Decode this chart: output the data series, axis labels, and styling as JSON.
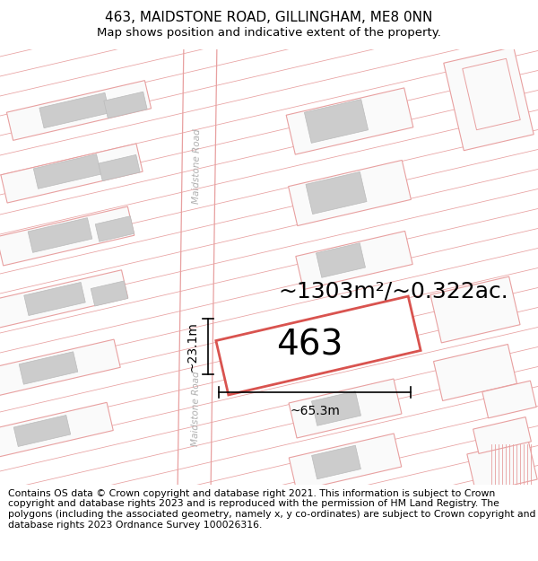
{
  "title": "463, MAIDSTONE ROAD, GILLINGHAM, ME8 0NN",
  "subtitle": "Map shows position and indicative extent of the property.",
  "footer": "Contains OS data © Crown copyright and database right 2021. This information is subject to Crown copyright and database rights 2023 and is reproduced with the permission of HM Land Registry. The polygons (including the associated geometry, namely x, y co-ordinates) are subject to Crown copyright and database rights 2023 Ordnance Survey 100026316.",
  "area_label": "~1303m²/~0.322ac.",
  "lot_label": "463",
  "dim_width": "~65.3m",
  "dim_height": "~23.1m",
  "road_label": "Maidstone Road",
  "bg_color": "#ffffff",
  "plot_color_fill": "#ffffff",
  "plot_color_edge": "#d9534f",
  "building_fill": "#cccccc",
  "building_edge": "#bbbbbb",
  "line_color": "#e8a0a0",
  "title_fontsize": 11,
  "subtitle_fontsize": 9.5,
  "footer_fontsize": 7.8,
  "area_fontsize": 18,
  "lot_fontsize": 28,
  "dim_fontsize": 10
}
